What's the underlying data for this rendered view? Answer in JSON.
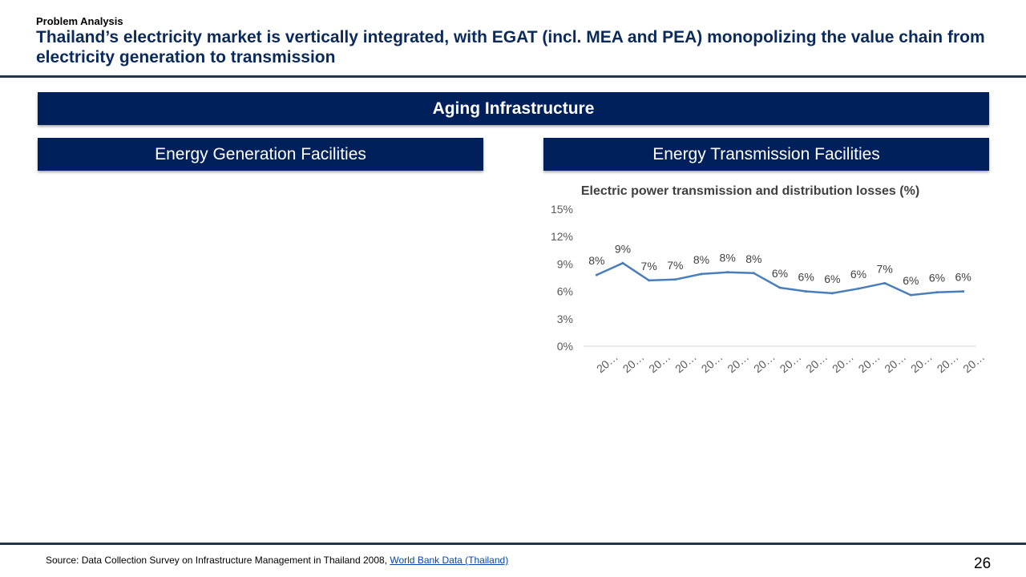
{
  "header": {
    "kicker": "Problem Analysis",
    "title": "Thailand’s electricity market is vertically integrated, with EGAT (incl. MEA and PEA) monopolizing the value chain from electricity generation to transmission"
  },
  "banner": {
    "main": "Aging Infrastructure"
  },
  "panels": {
    "generation_title": "Energy Generation Facilities",
    "transmission_title": "Energy Transmission Facilities"
  },
  "chart_data": {
    "type": "line",
    "title": "Electric power transmission and distribution losses (%)",
    "categories": [
      "20…",
      "20…",
      "20…",
      "20…",
      "20…",
      "20…",
      "20…",
      "20…",
      "20…",
      "20…",
      "20…",
      "20…",
      "20…",
      "20…",
      "20…"
    ],
    "values": [
      7.8,
      9.1,
      7.2,
      7.3,
      7.9,
      8.1,
      8.0,
      6.4,
      6.0,
      5.8,
      6.3,
      6.9,
      5.6,
      5.9,
      6.0
    ],
    "data_labels": [
      "8%",
      "9%",
      "7%",
      "7%",
      "8%",
      "8%",
      "8%",
      "6%",
      "6%",
      "6%",
      "6%",
      "7%",
      "6%",
      "6%",
      "6%"
    ],
    "y_ticks": [
      "0%",
      "3%",
      "6%",
      "9%",
      "12%",
      "15%"
    ],
    "ylim": [
      0,
      15
    ],
    "line_color": "#4a7ebb",
    "grid": false
  },
  "footer": {
    "source_prefix": "Source: Data Collection Survey on Infrastructure Management in Thailand 2008, ",
    "source_link": "World Bank Data (Thailand)",
    "page_number": "26"
  }
}
